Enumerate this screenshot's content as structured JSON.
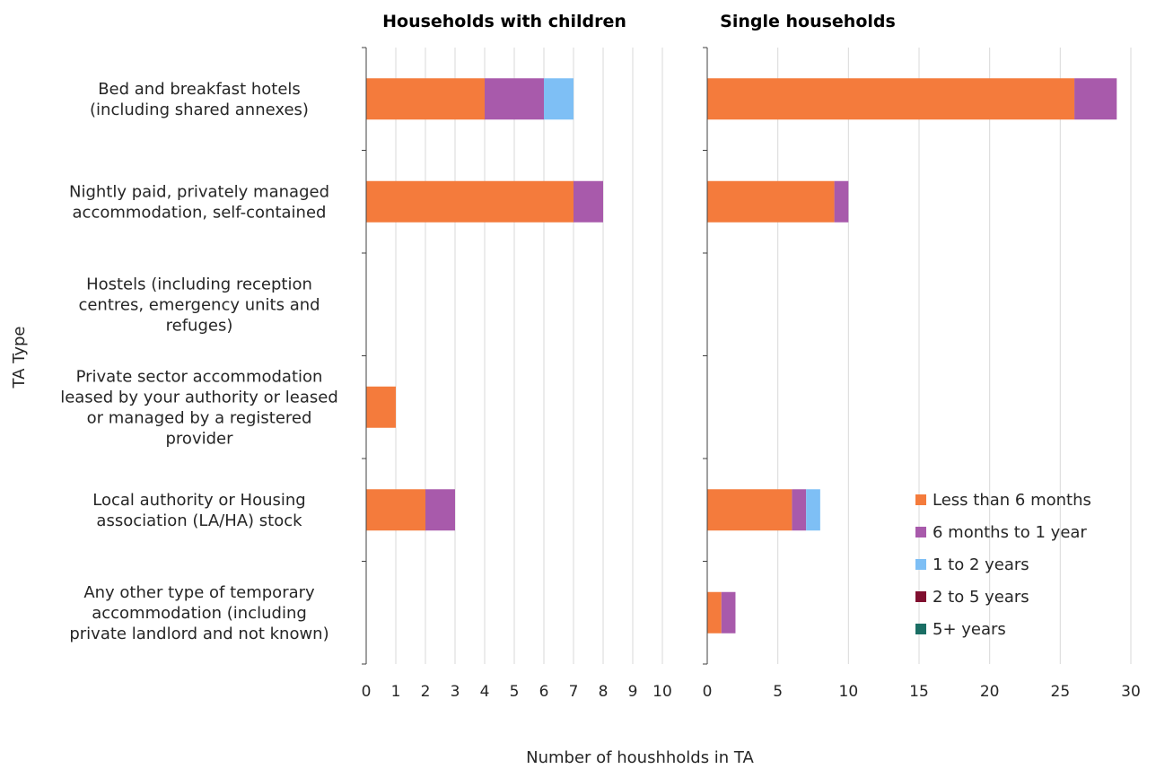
{
  "chart_data": {
    "type": "bar",
    "orientation": "horizontal",
    "stacked": true,
    "xlabel": "Number of houshholds in TA",
    "ylabel": "TA Type",
    "categories": [
      [
        "Bed and breakfast hotels",
        "(including shared annexes)"
      ],
      [
        "Nightly paid, privately managed",
        "accommodation, self-contained"
      ],
      [
        "Hostels (including reception",
        "centres, emergency units and",
        "refuges)"
      ],
      [
        "Private sector accommodation",
        "leased by your authority or leased",
        "or managed by a registered",
        "provider"
      ],
      [
        "Local authority or Housing",
        "association (LA/HA) stock"
      ],
      [
        "Any other type of temporary",
        "accommodation (including",
        "private landlord and not known)"
      ]
    ],
    "series_names": [
      "Less than 6 months",
      "6 months to 1 year",
      "1 to 2 years",
      "2 to 5 years",
      "5+ years"
    ],
    "colors": [
      "#F47B3C",
      "#A85AAB",
      "#7EBFF5",
      "#800F2F",
      "#1A6E64"
    ],
    "legend": {
      "placement": "bottom-right"
    },
    "grid": true,
    "panels": [
      {
        "title": "Households with children",
        "xlim": [
          0,
          10
        ],
        "xticks": [
          0,
          1,
          2,
          3,
          4,
          5,
          6,
          7,
          8,
          9,
          10
        ],
        "series": [
          {
            "name": "Less than 6 months",
            "values": [
              4,
              7,
              0,
              1,
              2,
              0
            ]
          },
          {
            "name": "6 months to 1 year",
            "values": [
              2,
              1,
              0,
              0,
              1,
              0
            ]
          },
          {
            "name": "1 to 2 years",
            "values": [
              1,
              0,
              0,
              0,
              0,
              0
            ]
          },
          {
            "name": "2 to 5 years",
            "values": [
              0,
              0,
              0,
              0,
              0,
              0
            ]
          },
          {
            "name": "5+ years",
            "values": [
              0,
              0,
              0,
              0,
              0,
              0
            ]
          }
        ]
      },
      {
        "title": "Single households",
        "xlim": [
          0,
          30
        ],
        "xticks": [
          0,
          5,
          10,
          15,
          20,
          25,
          30
        ],
        "series": [
          {
            "name": "Less than 6 months",
            "values": [
              26,
              9,
              0,
              0,
              6,
              1
            ]
          },
          {
            "name": "6 months to 1 year",
            "values": [
              3,
              1,
              0,
              0,
              1,
              1
            ]
          },
          {
            "name": "1 to 2 years",
            "values": [
              0,
              0,
              0,
              0,
              1,
              0
            ]
          },
          {
            "name": "2 to 5 years",
            "values": [
              0,
              0,
              0,
              0,
              0,
              0
            ]
          },
          {
            "name": "5+ years",
            "values": [
              0,
              0,
              0,
              0,
              0,
              0
            ]
          }
        ]
      }
    ]
  }
}
